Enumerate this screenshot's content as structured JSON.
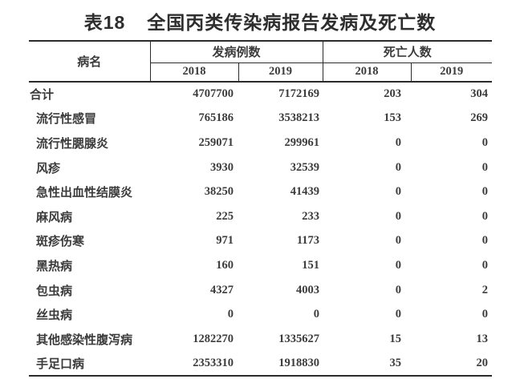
{
  "title": {
    "prefix": "表18",
    "text": "全国丙类传染病报告发病及死亡数"
  },
  "table": {
    "headers": {
      "disease": "病名",
      "cases_group": "发病例数",
      "deaths_group": "死亡人数",
      "years": [
        "2018",
        "2019",
        "2018",
        "2019"
      ]
    },
    "rows": [
      {
        "name": "合计",
        "values": [
          "4707700",
          "7172169",
          "203",
          "304"
        ]
      },
      {
        "name": "流行性感冒",
        "values": [
          "765186",
          "3538213",
          "153",
          "269"
        ]
      },
      {
        "name": "流行性腮腺炎",
        "values": [
          "259071",
          "299961",
          "0",
          "0"
        ]
      },
      {
        "name": "风疹",
        "values": [
          "3930",
          "32539",
          "0",
          "0"
        ]
      },
      {
        "name": "急性出血性结膜炎",
        "values": [
          "38250",
          "41439",
          "0",
          "0"
        ]
      },
      {
        "name": "麻风病",
        "values": [
          "225",
          "233",
          "0",
          "0"
        ]
      },
      {
        "name": "斑疹伤寒",
        "values": [
          "971",
          "1173",
          "0",
          "0"
        ]
      },
      {
        "name": "黑热病",
        "values": [
          "160",
          "151",
          "0",
          "0"
        ]
      },
      {
        "name": "包虫病",
        "values": [
          "4327",
          "4003",
          "0",
          "2"
        ]
      },
      {
        "name": "丝虫病",
        "values": [
          "0",
          "0",
          "0",
          "0"
        ]
      },
      {
        "name": "其他感染性腹泻病",
        "values": [
          "1282270",
          "1335627",
          "15",
          "13"
        ]
      },
      {
        "name": "手足口病",
        "values": [
          "2353310",
          "1918830",
          "35",
          "20"
        ]
      }
    ]
  },
  "colors": {
    "text": "#3b3b3b",
    "border": "#2b2b2b",
    "title": "#2e2e2e",
    "background": "#ffffff"
  }
}
